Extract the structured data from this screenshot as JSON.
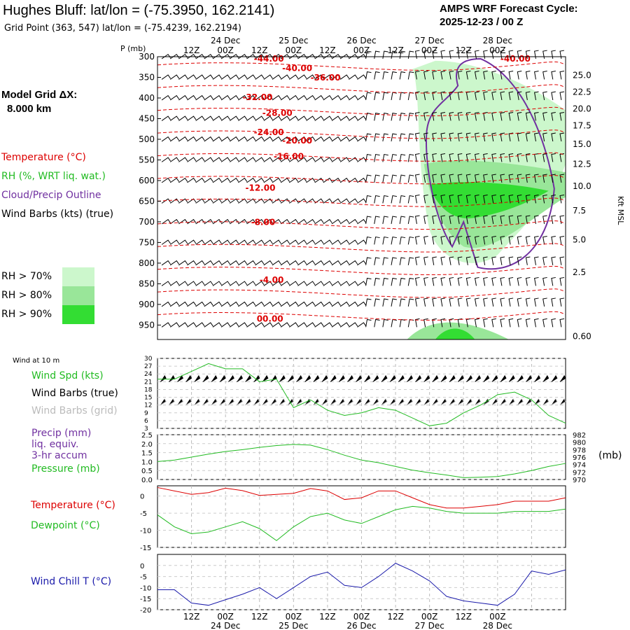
{
  "header": {
    "title": "Hughes Bluff:  lat/lon = (-75.3950, 162.2141)",
    "subtitle": "Grid Point (363, 547) lat/lon = (-75.4239, 162.2194)",
    "cycle_line1": "AMPS WRF Forecast Cycle:",
    "cycle_line2": "2025-12-23 / 00  Z",
    "grid_line1": "Model Grid ΔX:",
    "grid_line2": "8.000 km"
  },
  "legend": {
    "temperature": "Temperature (°C)",
    "rh": "RH (%, WRT liq. wat.)",
    "cloud": "Cloud/Precip Outline",
    "wind": "Wind Barbs (kts) (true)",
    "rh70": "RH > 70%",
    "rh80": "RH > 80%",
    "rh90": "RH > 90%",
    "wind10m": "Wind at 10 m",
    "wspd": "Wind Spd (kts)",
    "wbarb_true": "Wind Barbs (true)",
    "wbarb_grid": "Wind Barbs (grid)",
    "precip1": "Precip (mm)",
    "precip2": "liq. equiv.",
    "precip3": "3-hr accum",
    "pressure": "Pressure (mb)",
    "pres_unit": "(mb)",
    "temp": "Temperature (°C)",
    "dewp": "Dewpoint (°C)",
    "wchill": "Wind Chill T (°C)",
    "p_axis": "P (mb)",
    "kft": "Kft MSL"
  },
  "colors": {
    "temperature": "#dd0000",
    "rh70": "#ccf7cc",
    "rh80": "#99e699",
    "rh90": "#33dd33",
    "cloud": "#7030a0",
    "wspd": "#22bb22",
    "pressure": "#22bb22",
    "dewpoint": "#22bb22",
    "windchill": "#1a1aaa",
    "grid_barb": "#aaaaaa"
  },
  "chart_data": [
    {
      "type": "line",
      "title": "",
      "time_labels_top": [
        "12Z",
        "00Z",
        "12Z",
        "00Z",
        "12Z",
        "00Z",
        "12Z",
        "00Z",
        "12Z",
        "00Z"
      ],
      "date_labels_top": [
        "24 Dec",
        "25 Dec",
        "26 Dec",
        "27 Dec",
        "28 Dec"
      ],
      "pressure_levels_mb": [
        300,
        350,
        400,
        450,
        500,
        550,
        600,
        650,
        700,
        750,
        800,
        850,
        900,
        950
      ],
      "height_kft_msl": [
        "25.0",
        "22.5",
        "20.0",
        "17.5",
        "15.0",
        "12.5",
        "10.0",
        "7.5",
        "5.0",
        "2.5",
        "0.60"
      ],
      "height_kft_pressure": [
        345,
        386,
        426,
        467,
        512,
        560,
        614,
        673,
        743,
        822,
        977
      ],
      "temperature_contour_labels": [
        "-44.00",
        "-40.00",
        "-40.00",
        "-36.00",
        "-32.00",
        "-28.00",
        "-24.00",
        "-20.00",
        "-16.00",
        "-12.00",
        "-8.00",
        "-4.00",
        "00.00"
      ]
    },
    {
      "type": "line",
      "ylabel": "Wind Spd (kts)",
      "yticks": [
        3,
        6,
        9,
        12,
        15,
        18,
        21,
        24,
        27,
        30
      ],
      "ylim": [
        3,
        30
      ],
      "x_hours": [
        0,
        6,
        12,
        18,
        24,
        30,
        36,
        42,
        48,
        54,
        60,
        66,
        72,
        78,
        84,
        90,
        96,
        102,
        108,
        114,
        120,
        126,
        132,
        138,
        144
      ],
      "series": [
        {
          "name": "Wind Spd (kts)",
          "values": [
            22,
            22,
            25,
            28,
            26,
            26,
            21,
            22,
            11,
            14,
            10,
            8,
            9,
            11,
            10,
            7,
            4,
            5,
            9,
            12,
            16,
            17,
            14,
            8,
            5
          ]
        }
      ]
    },
    {
      "type": "line",
      "ylabel_left": "Precip (mm)",
      "yticks_left": [
        "0.0",
        "0.5",
        "1.0",
        "1.5",
        "2.0",
        "2.5"
      ],
      "ylim_left": [
        0,
        2.5
      ],
      "ylabel_right": "Pressure (mb)",
      "yticks_right": [
        970,
        972,
        974,
        976,
        978,
        980,
        982
      ],
      "ylim_right": [
        970,
        982
      ],
      "x_hours": [
        0,
        6,
        12,
        18,
        24,
        30,
        36,
        42,
        48,
        54,
        60,
        66,
        72,
        78,
        84,
        90,
        96,
        102,
        108,
        114,
        120,
        126,
        132,
        138,
        144
      ],
      "series": [
        {
          "name": "Pressure (mb)",
          "values": [
            974.8,
            975.2,
            976,
            976.8,
            977.5,
            978,
            978.6,
            979.1,
            979.4,
            979.2,
            978,
            976.5,
            975.2,
            974.5,
            973.5,
            972.5,
            971.8,
            971.2,
            970.5,
            970.6,
            970.8,
            971.5,
            972.4,
            973.5,
            974.3
          ]
        }
      ]
    },
    {
      "type": "line",
      "yticks": [
        -15,
        -10,
        -5,
        0
      ],
      "ylim": [
        -15,
        3
      ],
      "x_hours": [
        0,
        6,
        12,
        18,
        24,
        30,
        36,
        42,
        48,
        54,
        60,
        66,
        72,
        78,
        84,
        90,
        96,
        102,
        108,
        114,
        120,
        126,
        132,
        138,
        144
      ],
      "series": [
        {
          "name": "Temperature (°C)",
          "values": [
            2.5,
            1.5,
            0.5,
            1,
            2.3,
            1.6,
            0.2,
            0.5,
            0.8,
            2.2,
            1.5,
            -1,
            -0.5,
            1.5,
            1.5,
            -0.5,
            -2.5,
            -3.5,
            -3.5,
            -3,
            -2.5,
            -1.5,
            -1.5,
            -1.5,
            -0.5
          ]
        },
        {
          "name": "Dewpoint (°C)",
          "values": [
            -5.5,
            -9,
            -11,
            -10.5,
            -9,
            -7.5,
            -9.5,
            -13,
            -9,
            -6,
            -5,
            -7,
            -8,
            -6,
            -4,
            -3,
            -3.5,
            -4.5,
            -5,
            -5,
            -5,
            -4.5,
            -4.5,
            -4.5,
            -3.8
          ]
        }
      ]
    },
    {
      "type": "line",
      "ylabel": "Wind Chill T (°C)",
      "yticks": [
        -20,
        -15,
        -10,
        -5,
        0
      ],
      "ylim": [
        -20,
        5
      ],
      "x_hours": [
        0,
        6,
        12,
        18,
        24,
        30,
        36,
        42,
        48,
        54,
        60,
        66,
        72,
        78,
        84,
        90,
        96,
        102,
        108,
        114,
        120,
        126,
        132,
        138,
        144
      ],
      "series": [
        {
          "name": "Wind Chill T (°C)",
          "values": [
            -11,
            -11,
            -17,
            -18,
            -15.5,
            -13,
            -10,
            -15,
            -10,
            -5,
            -3,
            -9,
            -10,
            -5,
            1,
            -2.5,
            -7,
            -14,
            -16,
            -17,
            -18,
            -13,
            -2.5,
            -4,
            -2
          ]
        }
      ]
    }
  ]
}
